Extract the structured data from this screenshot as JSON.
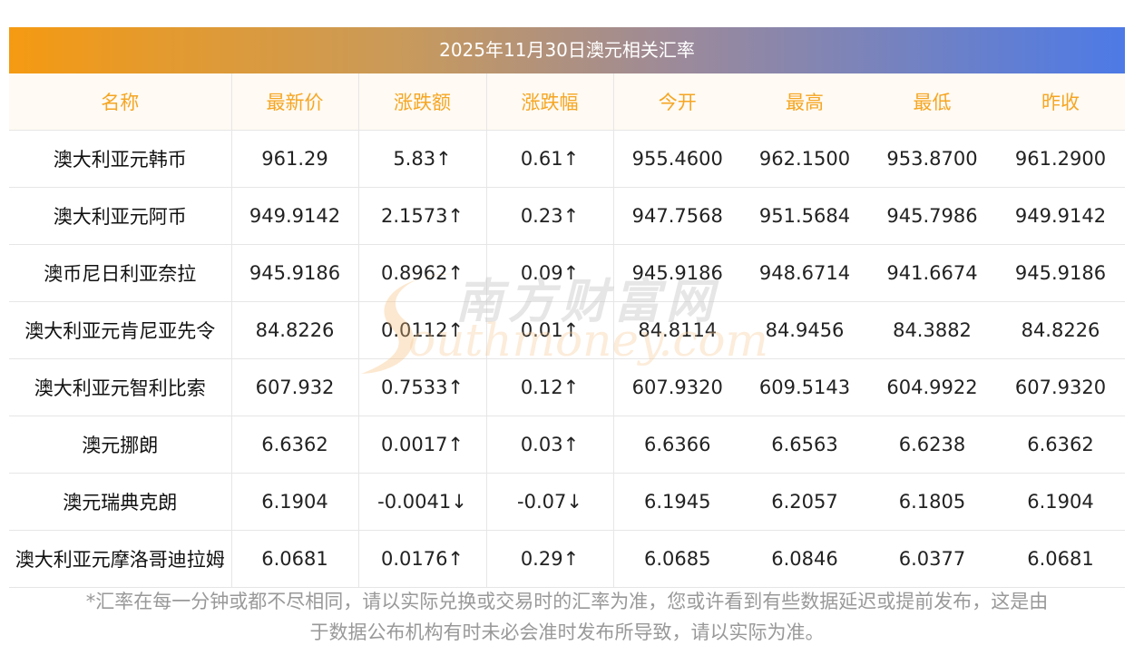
{
  "title": "2025年11月30日澳元相关汇率",
  "headers": [
    "名称",
    "最新价",
    "涨跌额",
    "涨跌幅",
    "今开",
    "最高",
    "最低",
    "昨收"
  ],
  "rows": [
    {
      "name": "澳大利亚元韩币",
      "price": "961.29",
      "change": "5.83↑",
      "pct": "0.61↑",
      "open": "955.4600",
      "high": "962.1500",
      "low": "953.8700",
      "prev": "961.2900",
      "dir": "up"
    },
    {
      "name": "澳大利亚元阿币",
      "price": "949.9142",
      "change": "2.1573↑",
      "pct": "0.23↑",
      "open": "947.7568",
      "high": "951.5684",
      "low": "945.7986",
      "prev": "949.9142",
      "dir": "up"
    },
    {
      "name": "澳币尼日利亚奈拉",
      "price": "945.9186",
      "change": "0.8962↑",
      "pct": "0.09↑",
      "open": "945.9186",
      "high": "948.6714",
      "low": "941.6674",
      "prev": "945.9186",
      "dir": "up"
    },
    {
      "name": "澳大利亚元肯尼亚先令",
      "price": "84.8226",
      "change": "0.0112↑",
      "pct": "0.01↑",
      "open": "84.8114",
      "high": "84.9456",
      "low": "84.3882",
      "prev": "84.8226",
      "dir": "up"
    },
    {
      "name": "澳大利亚元智利比索",
      "price": "607.932",
      "change": "0.7533↑",
      "pct": "0.12↑",
      "open": "607.9320",
      "high": "609.5143",
      "low": "604.9922",
      "prev": "607.9320",
      "dir": "up"
    },
    {
      "name": "澳元挪朗",
      "price": "6.6362",
      "change": "0.0017↑",
      "pct": "0.03↑",
      "open": "6.6366",
      "high": "6.6563",
      "low": "6.6238",
      "prev": "6.6362",
      "dir": "up"
    },
    {
      "name": "澳元瑞典克朗",
      "price": "6.1904",
      "change": "-0.0041↓",
      "pct": "-0.07↓",
      "open": "6.1945",
      "high": "6.2057",
      "low": "6.1805",
      "prev": "6.1904",
      "dir": "down"
    },
    {
      "name": "澳大利亚元摩洛哥迪拉姆",
      "price": "6.0681",
      "change": "0.0176↑",
      "pct": "0.29↑",
      "open": "6.0685",
      "high": "6.0846",
      "low": "6.0377",
      "prev": "6.0681",
      "dir": "up"
    }
  ],
  "footnote_line1": "*汇率在每一分钟或都不尽相同，请以实际兑换或交易时的汇率为准，您或许看到有些数据延迟或提前发布，这是由",
  "footnote_line2": "于数据公布机构有时未必会准时发布所导致，请以实际为准。",
  "watermark_cn": "南方财富网",
  "watermark_en": "outhmoney.com",
  "colors": {
    "up": "#e8141e",
    "down": "#1a8a1a",
    "header_text": "#f5a623",
    "title_gradient_start": "#f59a12",
    "title_gradient_end": "#4d7ae6"
  }
}
